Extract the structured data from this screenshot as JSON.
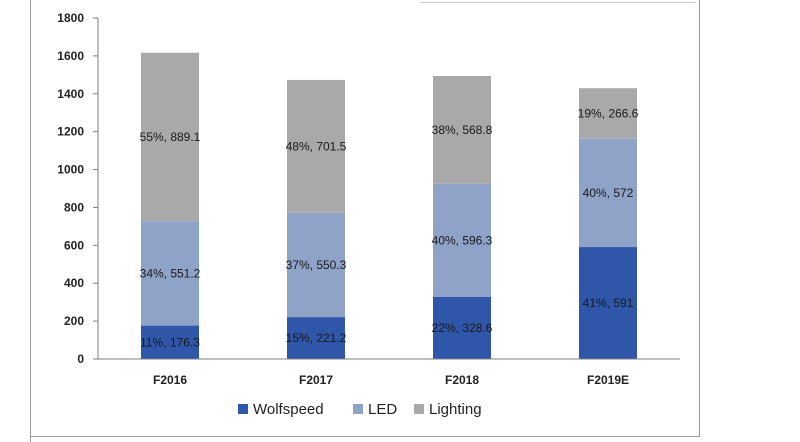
{
  "chart_data": {
    "type": "bar",
    "stacked": true,
    "categories": [
      "F2016",
      "F2017",
      "F2018",
      "F2019E"
    ],
    "ylim": [
      0,
      1800
    ],
    "yticks": [
      0,
      200,
      400,
      600,
      800,
      1000,
      1200,
      1400,
      1600,
      1800
    ],
    "xlabel": "",
    "ylabel": "",
    "title": "",
    "grid": false,
    "legend_position": "bottom",
    "series": [
      {
        "name": "Wolfspeed",
        "color": "#2f56a8",
        "values": [
          176.3,
          221.2,
          328.6,
          591
        ],
        "labels": [
          "11%, 176.3",
          "15%, 221.2",
          "22%, 328.6",
          "41%, 591"
        ]
      },
      {
        "name": "LED",
        "color": "#8fa3c9",
        "values": [
          551.2,
          550.3,
          596.3,
          572
        ],
        "labels": [
          "34%, 551.2",
          "37%, 550.3",
          "40%, 596.3",
          "40%, 572"
        ]
      },
      {
        "name": "Lighting",
        "color": "#a9a9a9",
        "values": [
          889.1,
          701.5,
          568.8,
          266.6
        ],
        "labels": [
          "55%, 889.1",
          "48%, 701.5",
          "38%, 568.8",
          "19%, 266.6"
        ]
      }
    ]
  }
}
